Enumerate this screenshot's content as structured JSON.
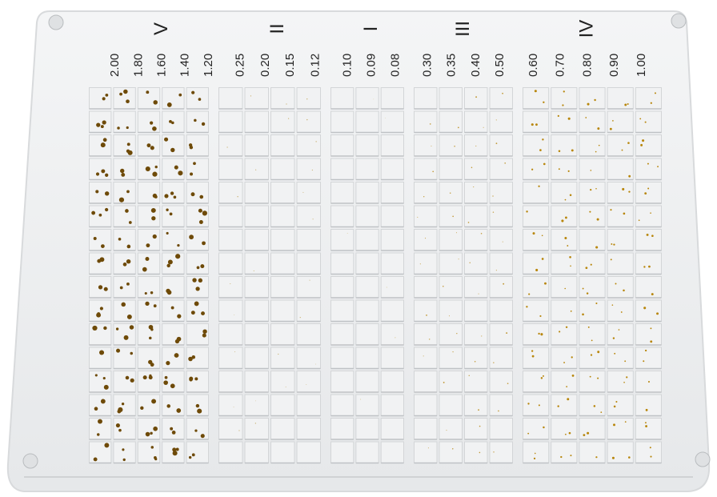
{
  "groups": [
    {
      "label": "V",
      "columns": [
        "2.00",
        "1.80",
        "1.60",
        "1.40",
        "1.20"
      ]
    },
    {
      "label": "II",
      "columns": [
        "0.25",
        "0.20",
        "0.15",
        "0.12"
      ]
    },
    {
      "label": "I",
      "columns": [
        "0.10",
        "0.09",
        "0.08"
      ]
    },
    {
      "label": "III",
      "columns": [
        "0.30",
        "0.35",
        "0.40",
        "0.50"
      ]
    },
    {
      "label": "IV",
      "columns": [
        "0.60",
        "0.70",
        "0.80",
        "0.90",
        "1.00"
      ]
    }
  ]
}
